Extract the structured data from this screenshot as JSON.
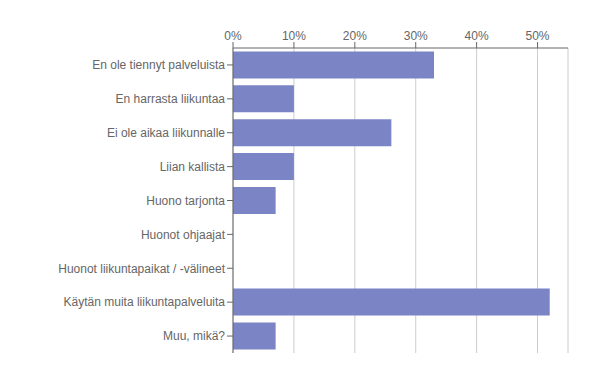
{
  "chart_data": {
    "type": "bar",
    "orientation": "horizontal",
    "categories": [
      "En ole tiennyt palveluista",
      "En harrasta liikuntaa",
      "Ei ole aikaa liikunnalle",
      "Liian kallista",
      "Huono tarjonta",
      "Huonot ohjaajat",
      "Huonot liikuntapaikat / -välineet",
      "Käytän muita liikuntapalveluita",
      "Muu, mikä?"
    ],
    "values": [
      33,
      10,
      26,
      10,
      7,
      0,
      0,
      52,
      7
    ],
    "color": "#7b84c4",
    "xlim": [
      0,
      55
    ],
    "xticks": [
      {
        "value": 0,
        "label": "0%"
      },
      {
        "value": 10,
        "label": "10%"
      },
      {
        "value": 20,
        "label": "20%"
      },
      {
        "value": 30,
        "label": "30%"
      },
      {
        "value": 40,
        "label": "40%"
      },
      {
        "value": 50,
        "label": "50%"
      }
    ],
    "grid": true
  }
}
